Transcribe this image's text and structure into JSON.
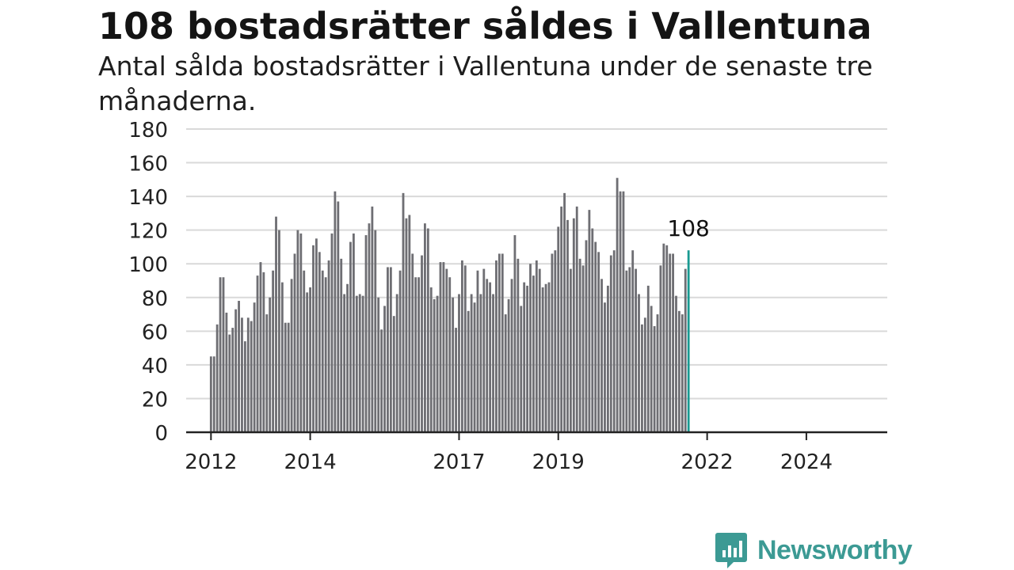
{
  "title": "108 bostadsrätter såldes i Vallentuna",
  "subtitle": "Antal sålda bostadsrätter i Vallentuna under de senaste tre månaderna.",
  "brand": {
    "name": "Newsworthy",
    "color": "#3c9a94",
    "icon": "newsworthy-logo-icon"
  },
  "colors": {
    "bar": "#6e6e73",
    "highlight": "#1a9a92",
    "grid": "#d9d9d9",
    "axis": "#222222"
  },
  "chart_data": {
    "type": "bar",
    "ylim": [
      0,
      180
    ],
    "yticks": [
      0,
      20,
      40,
      60,
      80,
      100,
      120,
      140,
      160,
      180
    ],
    "xlim": [
      2011.5,
      2025.63
    ],
    "xticks": [
      {
        "label": "2012",
        "value": 2012.0
      },
      {
        "label": "2014",
        "value": 2014.0
      },
      {
        "label": "2017",
        "value": 2017.0
      },
      {
        "label": "2019",
        "value": 2019.0
      },
      {
        "label": "2022",
        "value": 2022.0
      },
      {
        "label": "2024",
        "value": 2024.0
      }
    ],
    "grid": true,
    "start": 2012.0,
    "step": 0.0625,
    "values": [
      45,
      45,
      64,
      92,
      92,
      71,
      58,
      62,
      73,
      78,
      68,
      54,
      68,
      66,
      77,
      93,
      101,
      95,
      70,
      80,
      96,
      128,
      120,
      89,
      65,
      65,
      91,
      106,
      120,
      118,
      96,
      83,
      86,
      111,
      115,
      107,
      96,
      92,
      102,
      118,
      143,
      137,
      103,
      82,
      88,
      113,
      118,
      81,
      82,
      81,
      117,
      124,
      134,
      120,
      80,
      61,
      75,
      98,
      98,
      69,
      82,
      96,
      142,
      127,
      129,
      106,
      92,
      92,
      105,
      124,
      121,
      86,
      79,
      81,
      101,
      101,
      97,
      92,
      80,
      62,
      82,
      102,
      99,
      72,
      82,
      77,
      96,
      82,
      97,
      91,
      89,
      82,
      102,
      106,
      106,
      70,
      79,
      91,
      117,
      103,
      75,
      89,
      87,
      100,
      93,
      102,
      97,
      86,
      88,
      89,
      106,
      108,
      122,
      134,
      142,
      126,
      97,
      127,
      134,
      103,
      99,
      114,
      132,
      121,
      113,
      107,
      91,
      77,
      87,
      105,
      108,
      151,
      143,
      143,
      96,
      98,
      108,
      97,
      82,
      64,
      68,
      87,
      75,
      63,
      70,
      99,
      112,
      111,
      106,
      106,
      81,
      72,
      70,
      97,
      108
    ],
    "highlight_index": 154,
    "annotation": "108"
  }
}
